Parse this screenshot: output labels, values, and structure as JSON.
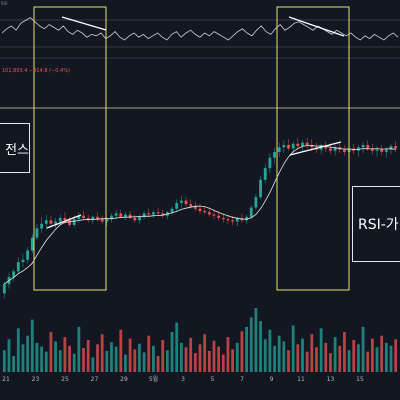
{
  "corner_tag": "RSI",
  "price_readout": "101,803.4  −414.8 (−0.4%)",
  "annotations": {
    "left_label": "전스",
    "right_label": "RSI-가"
  },
  "x_axis_labels": [
    "21",
    "23",
    "25",
    "27",
    "29",
    "5월",
    "3",
    "5",
    "7",
    "9",
    "11",
    "13",
    "15"
  ],
  "colors": {
    "background": "#131722",
    "bull": "#26a69a",
    "bear": "#ef5350",
    "rsi_line": "#d0d0d0",
    "highlight_box": "#e6e26a",
    "ma_line": "#e8e8e8",
    "guide_line": "#cfcf9a"
  },
  "chart_data": [
    {
      "type": "line",
      "name": "rsi",
      "values": [
        55,
        58,
        60,
        57,
        62,
        64,
        66,
        63,
        60,
        58,
        61,
        59,
        57,
        60,
        56,
        54,
        57,
        55,
        52,
        54,
        53,
        55,
        51,
        53,
        56,
        52,
        50,
        53,
        55,
        52,
        54,
        51,
        53,
        55,
        52,
        50,
        54,
        56,
        52,
        55,
        57,
        54,
        52,
        55,
        53,
        56,
        54,
        52,
        50,
        53,
        56,
        58,
        55,
        53,
        57,
        60,
        56,
        54,
        58,
        61,
        57,
        59,
        62,
        63,
        61,
        59,
        57,
        60,
        58,
        56,
        54,
        57,
        55,
        53,
        55,
        52,
        50,
        53,
        51,
        54,
        52,
        50,
        53,
        55,
        52
      ]
    },
    {
      "type": "candlestick",
      "name": "price",
      "values": [
        [
          100,
          110,
          96,
          108
        ],
        [
          108,
          118,
          104,
          114
        ],
        [
          114,
          121,
          110,
          119
        ],
        [
          119,
          131,
          117,
          127
        ],
        [
          127,
          134,
          122,
          129
        ],
        [
          129,
          140,
          126,
          137
        ],
        [
          137,
          151,
          135,
          148
        ],
        [
          148,
          160,
          146,
          156
        ],
        [
          156,
          166,
          152,
          160
        ],
        [
          160,
          168,
          155,
          163
        ],
        [
          163,
          167,
          157,
          160
        ],
        [
          160,
          165,
          156,
          162
        ],
        [
          162,
          168,
          159,
          165
        ],
        [
          165,
          170,
          160,
          163
        ],
        [
          163,
          166,
          157,
          159
        ],
        [
          159,
          167,
          157,
          164
        ],
        [
          164,
          170,
          161,
          167
        ],
        [
          167,
          171,
          163,
          165
        ],
        [
          165,
          168,
          161,
          163
        ],
        [
          163,
          167,
          160,
          166
        ],
        [
          166,
          170,
          162,
          164
        ],
        [
          164,
          167,
          160,
          162
        ],
        [
          162,
          166,
          158,
          164
        ],
        [
          164,
          169,
          161,
          167
        ],
        [
          167,
          172,
          164,
          169
        ],
        [
          169,
          172,
          165,
          166
        ],
        [
          166,
          170,
          163,
          168
        ],
        [
          168,
          171,
          164,
          165
        ],
        [
          165,
          168,
          161,
          163
        ],
        [
          163,
          168,
          160,
          166
        ],
        [
          166,
          171,
          164,
          169
        ],
        [
          169,
          173,
          166,
          168
        ],
        [
          168,
          172,
          165,
          170
        ],
        [
          170,
          174,
          167,
          169
        ],
        [
          169,
          172,
          165,
          167
        ],
        [
          167,
          171,
          164,
          170
        ],
        [
          170,
          175,
          168,
          173
        ],
        [
          173,
          181,
          171,
          178
        ],
        [
          178,
          184,
          174,
          180
        ],
        [
          180,
          183,
          175,
          177
        ],
        [
          177,
          181,
          173,
          175
        ],
        [
          175,
          179,
          171,
          173
        ],
        [
          173,
          177,
          169,
          171
        ],
        [
          171,
          175,
          168,
          170
        ],
        [
          170,
          174,
          166,
          168
        ],
        [
          168,
          172,
          164,
          167
        ],
        [
          167,
          171,
          163,
          165
        ],
        [
          165,
          169,
          161,
          164
        ],
        [
          164,
          168,
          160,
          163
        ],
        [
          163,
          167,
          159,
          162
        ],
        [
          162,
          166,
          158,
          165
        ],
        [
          165,
          169,
          161,
          163
        ],
        [
          163,
          168,
          160,
          166
        ],
        [
          166,
          176,
          164,
          174
        ],
        [
          174,
          186,
          172,
          183
        ],
        [
          183,
          201,
          181,
          198
        ],
        [
          198,
          212,
          195,
          208
        ],
        [
          208,
          221,
          204,
          217
        ],
        [
          217,
          226,
          212,
          222
        ],
        [
          222,
          230,
          218,
          226
        ],
        [
          226,
          232,
          221,
          228
        ],
        [
          228,
          233,
          223,
          225
        ],
        [
          225,
          231,
          221,
          229
        ],
        [
          229,
          234,
          224,
          227
        ],
        [
          227,
          232,
          222,
          230
        ],
        [
          230,
          234,
          225,
          228
        ],
        [
          228,
          233,
          223,
          226
        ],
        [
          226,
          230,
          221,
          224
        ],
        [
          224,
          229,
          220,
          227
        ],
        [
          227,
          231,
          222,
          225
        ],
        [
          225,
          229,
          220,
          223
        ],
        [
          223,
          228,
          219,
          226
        ],
        [
          226,
          230,
          221,
          224
        ],
        [
          224,
          228,
          219,
          222
        ],
        [
          222,
          227,
          218,
          225
        ],
        [
          225,
          229,
          220,
          223
        ],
        [
          223,
          228,
          218,
          226
        ],
        [
          226,
          231,
          221,
          228
        ],
        [
          228,
          232,
          223,
          225
        ],
        [
          225,
          229,
          220,
          223
        ],
        [
          223,
          227,
          218,
          224
        ],
        [
          224,
          228,
          219,
          222
        ],
        [
          222,
          226,
          217,
          224
        ],
        [
          224,
          229,
          220,
          227
        ],
        [
          227,
          231,
          222,
          225
        ]
      ]
    },
    {
      "type": "bar",
      "name": "volume",
      "values": [
        30,
        45,
        22,
        60,
        38,
        50,
        72,
        40,
        35,
        28,
        55,
        42,
        30,
        48,
        36,
        25,
        62,
        33,
        44,
        20,
        38,
        52,
        29,
        41,
        35,
        58,
        24,
        46,
        31,
        39,
        27,
        50,
        36,
        22,
        44,
        30,
        55,
        68,
        40,
        34,
        47,
        26,
        38,
        52,
        29,
        43,
        35,
        24,
        48,
        31,
        40,
        56,
        62,
        75,
        88,
        70,
        45,
        58,
        36,
        50,
        42,
        30,
        64,
        38,
        46,
        28,
        52,
        34,
        60,
        40,
        26,
        48,
        36,
        55,
        30,
        44,
        38,
        62,
        28,
        46,
        34,
        50,
        40,
        36,
        45
      ]
    }
  ]
}
